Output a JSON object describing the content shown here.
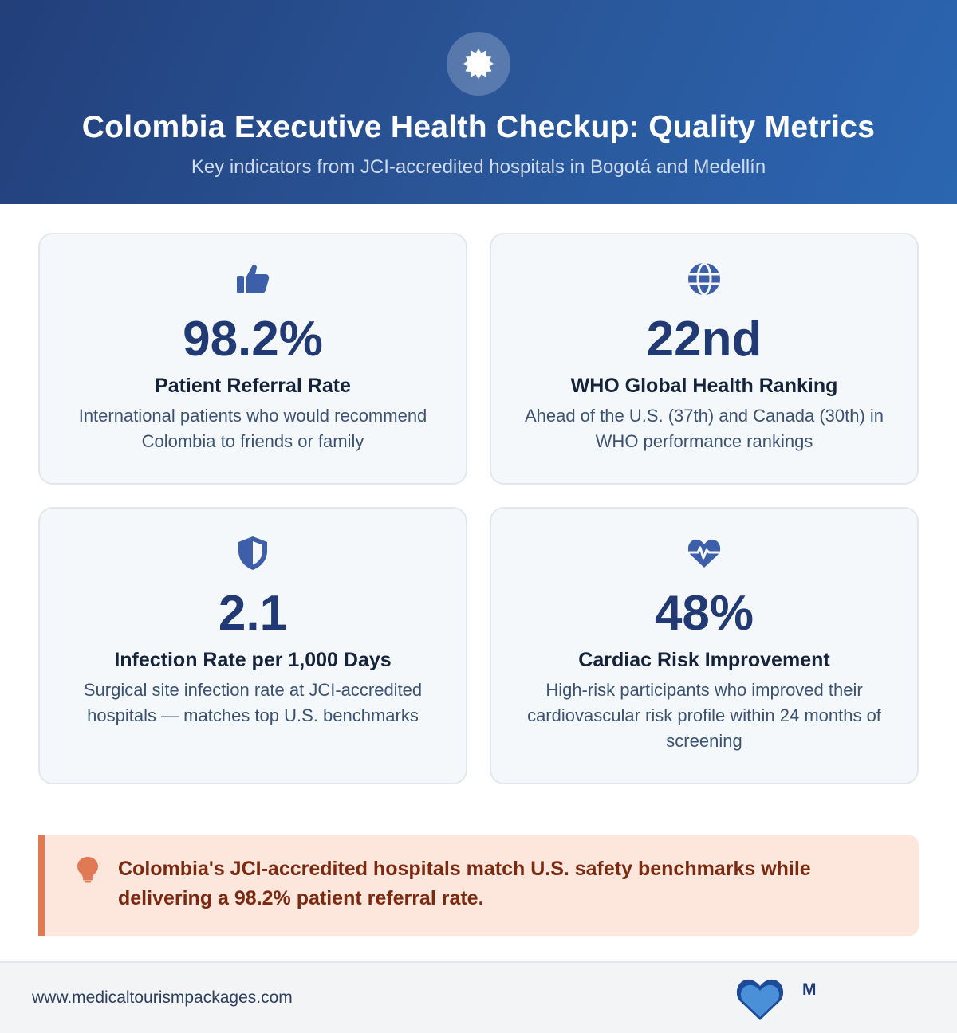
{
  "header": {
    "badge_icon": "medical-seal-icon",
    "title": "Colombia Executive Health Checkup: Quality Metrics",
    "subtitle": "Key indicators from JCI-accredited hospitals in Bogotá and Medellín"
  },
  "metrics": [
    {
      "icon": "thumbs-up-icon",
      "value": "98.2%",
      "label": "Patient Referral Rate",
      "description": "International patients who would recommend Colombia to friends or family"
    },
    {
      "icon": "globe-icon",
      "value": "22nd",
      "label": "WHO Global Health Ranking",
      "description": "Ahead of the U.S. (37th) and Canada (30th) in WHO performance rankings"
    },
    {
      "icon": "shield-icon",
      "value": "2.1",
      "label": "Infection Rate per 1,000 Days",
      "description": "Surgical site infection rate at JCI-accredited hospitals — matches top U.S. benchmarks"
    },
    {
      "icon": "heart-pulse-icon",
      "value": "48%",
      "label": "Cardiac Risk Improvement",
      "description": "High-risk participants who improved their cardiovascular risk profile within 24 months of screening"
    }
  ],
  "callout": {
    "icon": "lightbulb-icon",
    "text": "Colombia's JCI-accredited hospitals match U.S. safety benchmarks while delivering a 98.2% patient referral rate."
  },
  "footer": {
    "url": "www.medicaltourismpackages.com",
    "logo_icon": "heart-logo-icon",
    "logo_text": "M"
  },
  "colors": {
    "header_gradient_start": "#223f7a",
    "header_gradient_end": "#2b66b2",
    "metric_value": "#223a73",
    "icon_blue": "#3d5ea8",
    "callout_bg": "#fde6dc",
    "callout_accent": "#e07a55",
    "callout_text": "#7a2a10"
  }
}
